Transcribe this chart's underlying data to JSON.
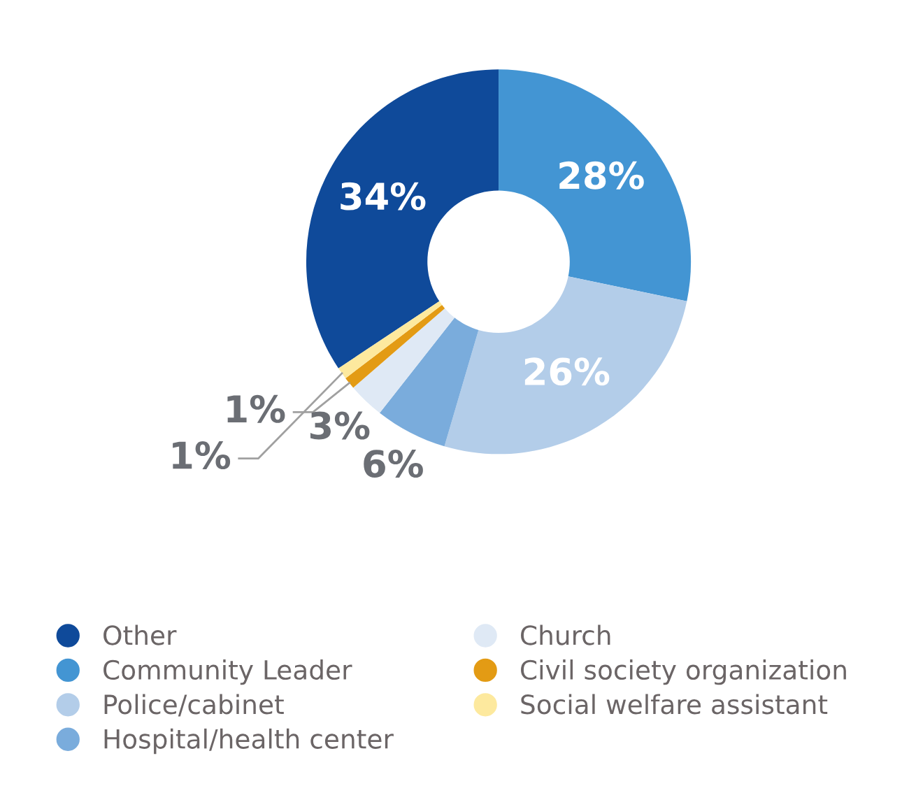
{
  "chart_data": {
    "type": "donut",
    "categories": [
      "Other",
      "Community Leader",
      "Police/cabinet",
      "Hospital/health center",
      "Church",
      "Civil society organization",
      "Social welfare assistant"
    ],
    "values": [
      34,
      28,
      26,
      6,
      3,
      1,
      1
    ],
    "value_labels": [
      "34%",
      "28%",
      "26%",
      "6%",
      "3%",
      "1%",
      "1%"
    ],
    "colors": [
      "#0f4a9a",
      "#4395d3",
      "#b3cde9",
      "#7aacdc",
      "#dfe9f5",
      "#e39b14",
      "#fde99e"
    ],
    "legend": "bottom"
  }
}
